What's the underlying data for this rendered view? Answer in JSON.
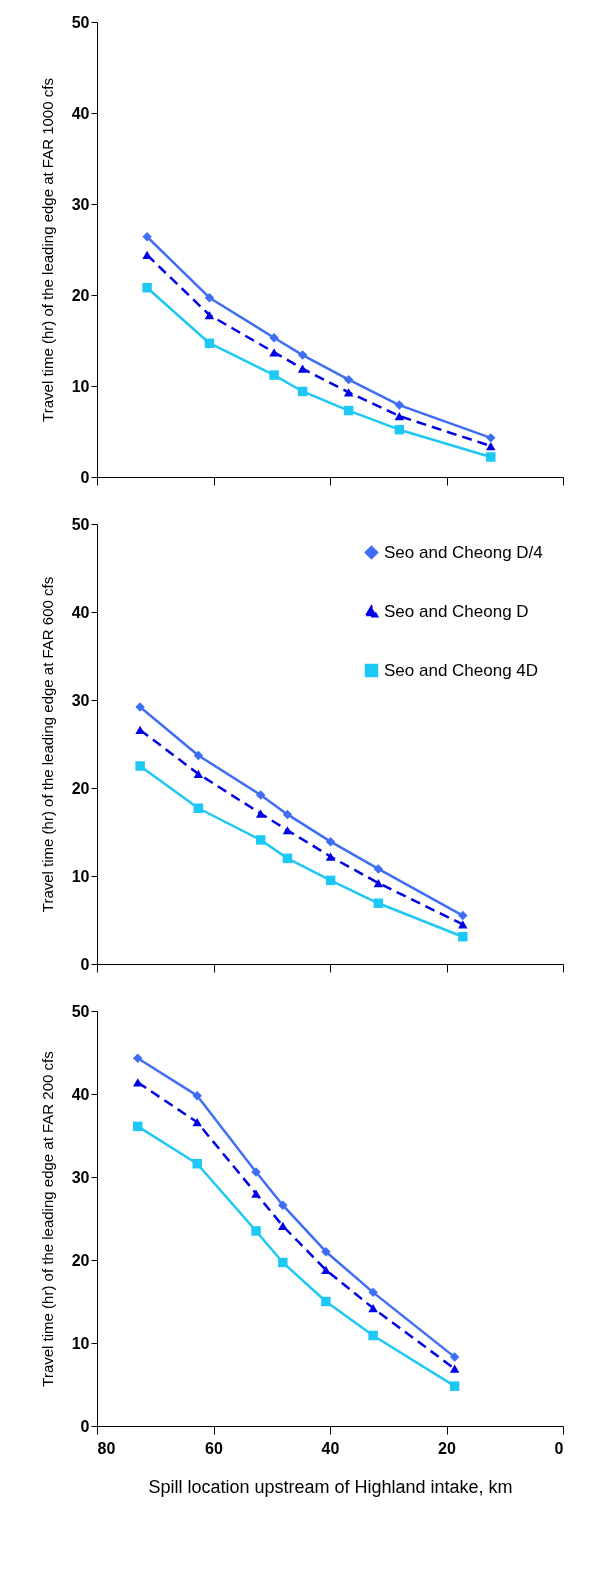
{
  "chart_data": [
    {
      "type": "line",
      "ylabel": "Travel time (hr) of the leading edge at FAR 1000 cfs",
      "xlim": [
        80,
        0
      ],
      "xticks": [
        80,
        60,
        40,
        20,
        0
      ],
      "ylim": [
        0,
        50
      ],
      "yticks": [
        0,
        10,
        20,
        30,
        40,
        50
      ],
      "grid": false,
      "legend": false,
      "tick_labels": "y",
      "series": [
        {
          "color": "#3f6ef5",
          "marker": "diamond",
          "line_style": "solid",
          "x": [
            71.4,
            60.7,
            49.6,
            44.7,
            36.8,
            28.1,
            12.4
          ],
          "values": [
            26.4,
            19.7,
            15.3,
            13.4,
            10.7,
            7.9,
            4.3
          ]
        },
        {
          "color": "#0000e6",
          "marker": "triangle",
          "line_style": "dashed",
          "x": [
            71.4,
            60.7,
            49.6,
            44.7,
            36.8,
            28.1,
            12.4
          ],
          "values": [
            24.4,
            17.8,
            13.7,
            11.9,
            9.3,
            6.7,
            3.4
          ]
        },
        {
          "color": "#1ec8f5",
          "marker": "square",
          "line_style": "solid",
          "x": [
            71.4,
            60.7,
            49.6,
            44.7,
            36.8,
            28.1,
            12.4
          ],
          "values": [
            20.8,
            14.7,
            11.2,
            9.4,
            7.3,
            5.2,
            2.2
          ]
        }
      ]
    },
    {
      "type": "line",
      "ylabel": "Travel time (hr) of the leading edge at FAR 600 cfs",
      "xlim": [
        80,
        0
      ],
      "xticks": [
        80,
        60,
        40,
        20,
        0
      ],
      "ylim": [
        0,
        50
      ],
      "yticks": [
        0,
        10,
        20,
        30,
        40,
        50
      ],
      "grid": false,
      "legend": "top right",
      "tick_labels": "y",
      "series": [
        {
          "name": "Seo and Cheong D/4",
          "color": "#3f6ef5",
          "marker": "diamond",
          "line_style": "solid",
          "x": [
            72.6,
            62.6,
            51.9,
            47.3,
            39.9,
            31.7,
            17.2
          ],
          "values": [
            29.2,
            23.7,
            19.2,
            17.0,
            13.9,
            10.8,
            5.5
          ]
        },
        {
          "name": "Seo and Cheong D",
          "color": "#0000e6",
          "marker": "triangle",
          "line_style": "dashed",
          "x": [
            72.6,
            62.6,
            51.9,
            47.3,
            39.9,
            31.7,
            17.2
          ],
          "values": [
            26.6,
            21.6,
            17.1,
            15.2,
            12.2,
            9.2,
            4.5
          ]
        },
        {
          "name": "Seo and Cheong 4D",
          "color": "#1ec8f5",
          "marker": "square",
          "line_style": "solid",
          "x": [
            72.6,
            62.6,
            51.9,
            47.3,
            39.9,
            31.7,
            17.2
          ],
          "values": [
            22.5,
            17.7,
            14.1,
            12.0,
            9.5,
            6.9,
            3.1
          ]
        }
      ]
    },
    {
      "type": "line",
      "ylabel": "Travel time (hr) of the leading edge at FAR 200 cfs",
      "xlabel": "Spill location upstream of Highland intake, km",
      "xlim": [
        80,
        0
      ],
      "xticks": [
        80,
        60,
        40,
        20,
        0
      ],
      "ylim": [
        0,
        50
      ],
      "yticks": [
        0,
        10,
        20,
        30,
        40,
        50
      ],
      "grid": false,
      "legend": false,
      "series": [
        {
          "color": "#3f6ef5",
          "marker": "diamond",
          "line_style": "solid",
          "x": [
            73.0,
            62.8,
            52.7,
            48.1,
            40.7,
            32.6,
            18.6
          ],
          "values": [
            44.3,
            39.8,
            30.6,
            26.6,
            21.0,
            16.1,
            8.3
          ]
        },
        {
          "color": "#0000e6",
          "marker": "triangle",
          "line_style": "dashed",
          "x": [
            73.0,
            62.8,
            52.7,
            48.1,
            40.7,
            32.6,
            18.6
          ],
          "values": [
            41.4,
            36.6,
            28.0,
            24.1,
            18.8,
            14.2,
            6.9
          ]
        },
        {
          "color": "#1ec8f5",
          "marker": "square",
          "line_style": "solid",
          "x": [
            73.0,
            62.8,
            52.7,
            48.1,
            40.7,
            32.6,
            18.6
          ],
          "values": [
            36.1,
            31.6,
            23.5,
            19.7,
            15.0,
            10.9,
            4.8
          ]
        }
      ]
    }
  ]
}
